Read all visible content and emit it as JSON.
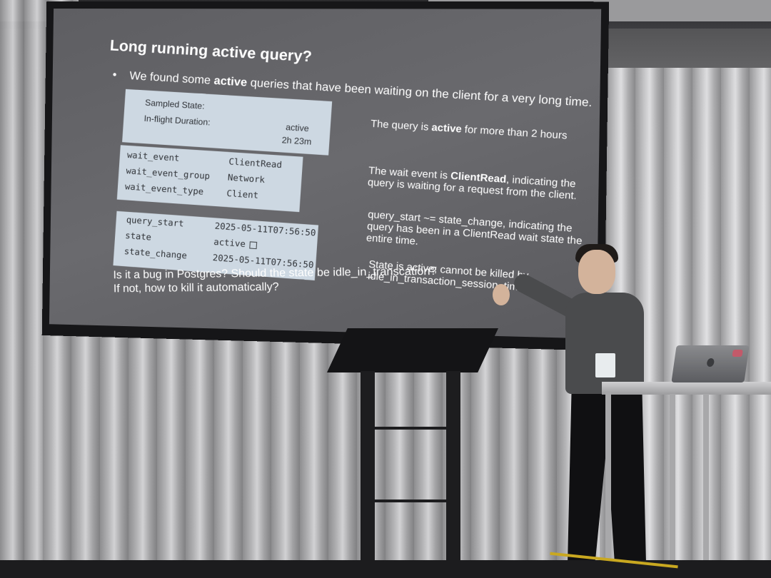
{
  "slide": {
    "title": "Long running active query?",
    "bullet": {
      "marker": "•",
      "pre": "We found some ",
      "bold": "active",
      "post": " queries that have been waiting on the client for a very long time."
    },
    "box1": {
      "rows": [
        {
          "key": "Sampled State:",
          "value": ""
        },
        {
          "key": "In-flight Duration:",
          "value": "active"
        },
        {
          "key": "",
          "value": "2h 23m"
        }
      ]
    },
    "box2": {
      "rows": [
        {
          "key": "wait_event",
          "value": "ClientRead"
        },
        {
          "key": "wait_event_group",
          "value": "Network"
        },
        {
          "key": "wait_event_type",
          "value": "Client"
        }
      ]
    },
    "box3": {
      "rows": [
        {
          "key": "query_start",
          "value": "2025-05-11T07:56:50"
        },
        {
          "key": "state",
          "value": "active"
        },
        {
          "key": "state_change",
          "value": "2025-05-11T07:56:50"
        }
      ]
    },
    "notes": {
      "n1_pre": "The query is ",
      "n1_bold": "active",
      "n1_post": " for more than 2 hours",
      "n2_pre": "The wait event is ",
      "n2_bold": "ClientRead",
      "n2_post": ", indicating the query is waiting for a request from the client.",
      "n3": "query_start ~= state_change, indicating the query has been in a ClientRead wait state the entire time.",
      "n4": "State is active; cannot be killed by idle_in_transaction_session_timeout"
    },
    "question_line1": "Is it a bug in Postgres? Should the state be idle_in_transcation?",
    "question_line2": "If not, how to kill it automatically?"
  },
  "colors": {
    "slide_bg": "#646468",
    "box_bg": "#cdd8e2",
    "text": "#ffffff"
  }
}
